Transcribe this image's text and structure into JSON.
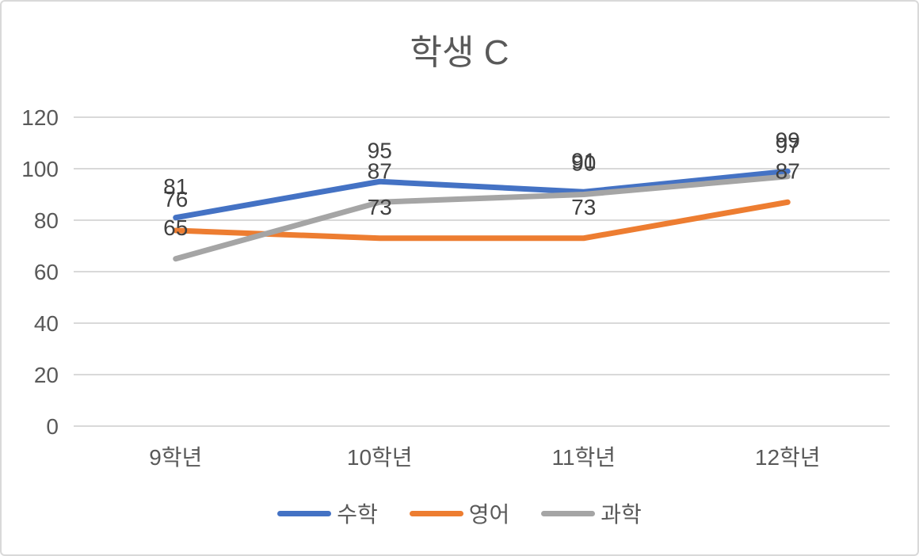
{
  "chart": {
    "border_color": "#D9D9D9",
    "background_color": "#FFFFFF",
    "gridline_color": "#D9D9D9",
    "title_color": "#595959",
    "axis_label_color": "#595959",
    "data_label_color": "#404040"
  },
  "chart_data": {
    "type": "line",
    "title": "학생 C",
    "categories": [
      "9학년",
      "10학년",
      "11학년",
      "12학년"
    ],
    "series": [
      {
        "name": "수학",
        "key": "math",
        "color": "#4472C4",
        "values": [
          81,
          95,
          91,
          99
        ]
      },
      {
        "name": "영어",
        "key": "english",
        "color": "#ED7D31",
        "values": [
          76,
          73,
          73,
          87
        ]
      },
      {
        "name": "과학",
        "key": "science",
        "color": "#A5A5A5",
        "values": [
          65,
          87,
          90,
          97
        ]
      }
    ],
    "ylim": [
      0,
      120
    ],
    "yticks": [
      0,
      20,
      40,
      60,
      80,
      100,
      120
    ],
    "xlabel": "",
    "ylabel": "",
    "grid": "horizontal",
    "data_labels": true,
    "legend_position": "bottom"
  }
}
